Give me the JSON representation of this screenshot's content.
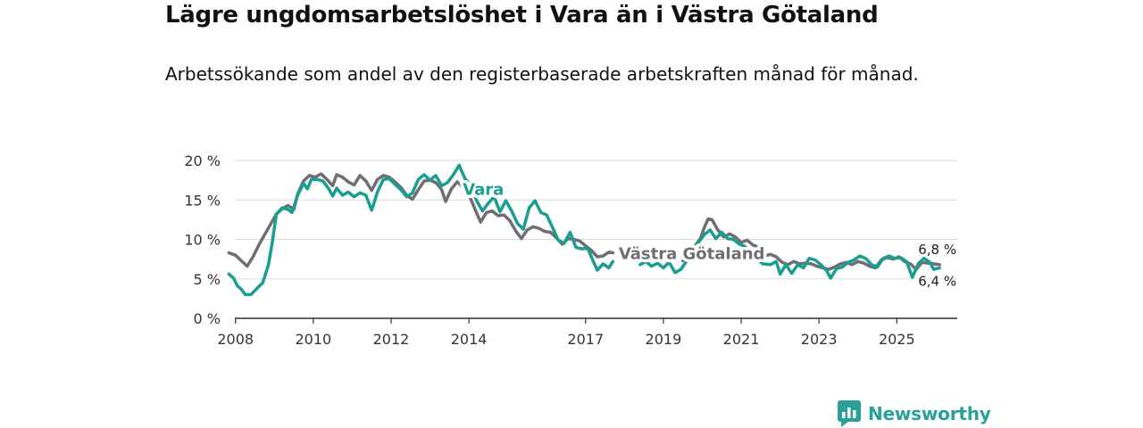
{
  "header": {
    "title": "Lägre ungdomsarbetslöshet i Vara än i Västra Götaland",
    "subtitle": "Arbetssökande som andel av den registerbaserade arbetskraften månad för månad."
  },
  "chart_data": {
    "type": "line",
    "title": "Lägre ungdomsarbetslöshet i Vara än i Västra Götaland",
    "xlabel": "",
    "ylabel": "",
    "ylim": [
      0,
      20
    ],
    "xlim": [
      2007.8,
      2026.6
    ],
    "grid": true,
    "y_ticks": [
      0,
      5,
      10,
      15,
      20
    ],
    "y_tick_labels": [
      "0 %",
      "5 %",
      "10 %",
      "15 %",
      "20 %"
    ],
    "x_ticks": [
      2008,
      2010,
      2012,
      2014,
      2017,
      2019,
      2021,
      2023,
      2025
    ],
    "x_tick_labels": [
      "2008",
      "2010",
      "2012",
      "2014",
      "2017",
      "2019",
      "2021",
      "2023",
      "2025"
    ],
    "series": [
      {
        "name": "Västra Götaland",
        "color": "#6e6e73",
        "end_label": "6,8 %",
        "points": [
          [
            2007.83,
            8.3
          ],
          [
            2008.0,
            8.0
          ],
          [
            2008.15,
            7.3
          ],
          [
            2008.3,
            6.6
          ],
          [
            2008.45,
            7.8
          ],
          [
            2008.6,
            9.3
          ],
          [
            2008.75,
            10.6
          ],
          [
            2008.9,
            11.9
          ],
          [
            2009.05,
            13.2
          ],
          [
            2009.2,
            13.9
          ],
          [
            2009.35,
            14.3
          ],
          [
            2009.5,
            13.8
          ],
          [
            2009.6,
            15.8
          ],
          [
            2009.75,
            17.4
          ],
          [
            2009.9,
            18.1
          ],
          [
            2010.05,
            17.9
          ],
          [
            2010.2,
            18.3
          ],
          [
            2010.35,
            17.6
          ],
          [
            2010.5,
            16.8
          ],
          [
            2010.6,
            18.2
          ],
          [
            2010.75,
            17.9
          ],
          [
            2010.9,
            17.3
          ],
          [
            2011.05,
            16.9
          ],
          [
            2011.2,
            18.1
          ],
          [
            2011.35,
            17.4
          ],
          [
            2011.5,
            16.2
          ],
          [
            2011.65,
            17.6
          ],
          [
            2011.8,
            18.1
          ],
          [
            2011.95,
            17.9
          ],
          [
            2012.1,
            17.3
          ],
          [
            2012.25,
            16.6
          ],
          [
            2012.4,
            15.6
          ],
          [
            2012.55,
            15.1
          ],
          [
            2012.7,
            16.3
          ],
          [
            2012.85,
            17.4
          ],
          [
            2013.0,
            17.5
          ],
          [
            2013.15,
            17.2
          ],
          [
            2013.3,
            16.3
          ],
          [
            2013.4,
            14.8
          ],
          [
            2013.55,
            16.4
          ],
          [
            2013.7,
            17.3
          ],
          [
            2013.85,
            16.6
          ],
          [
            2014.0,
            15.7
          ],
          [
            2014.15,
            13.9
          ],
          [
            2014.3,
            12.2
          ],
          [
            2014.45,
            13.4
          ],
          [
            2014.6,
            13.6
          ],
          [
            2014.75,
            13.0
          ],
          [
            2014.9,
            13.1
          ],
          [
            2015.05,
            12.4
          ],
          [
            2015.2,
            11.1
          ],
          [
            2015.35,
            10.1
          ],
          [
            2015.5,
            11.2
          ],
          [
            2015.65,
            11.6
          ],
          [
            2015.8,
            11.4
          ],
          [
            2015.95,
            11.0
          ],
          [
            2016.1,
            10.9
          ],
          [
            2016.25,
            10.2
          ],
          [
            2016.4,
            9.4
          ],
          [
            2016.55,
            10.1
          ],
          [
            2016.7,
            10.0
          ],
          [
            2016.85,
            9.8
          ],
          [
            2017.0,
            9.2
          ],
          [
            2017.15,
            8.6
          ],
          [
            2017.3,
            7.8
          ],
          [
            2017.45,
            7.9
          ],
          [
            2017.6,
            8.4
          ],
          [
            2017.7,
            8.3
          ],
          [
            2019.5,
            7.3
          ],
          [
            2019.65,
            8.0
          ],
          [
            2019.8,
            9.1
          ],
          [
            2019.95,
            10.1
          ],
          [
            2020.05,
            11.5
          ],
          [
            2020.15,
            12.6
          ],
          [
            2020.25,
            12.5
          ],
          [
            2020.4,
            11.2
          ],
          [
            2020.55,
            10.3
          ],
          [
            2020.7,
            10.7
          ],
          [
            2020.85,
            10.3
          ],
          [
            2021.0,
            9.6
          ],
          [
            2021.15,
            9.9
          ],
          [
            2021.3,
            9.3
          ],
          [
            2021.45,
            9.0
          ],
          [
            2021.6,
            7.9
          ],
          [
            2021.75,
            8.1
          ],
          [
            2021.9,
            7.8
          ],
          [
            2022.05,
            7.1
          ],
          [
            2022.2,
            6.8
          ],
          [
            2022.35,
            7.2
          ],
          [
            2022.5,
            6.9
          ],
          [
            2022.65,
            7.0
          ],
          [
            2022.8,
            6.9
          ],
          [
            2022.95,
            6.6
          ],
          [
            2023.1,
            6.4
          ],
          [
            2023.25,
            6.2
          ],
          [
            2023.4,
            6.5
          ],
          [
            2023.55,
            6.9
          ],
          [
            2023.7,
            7.1
          ],
          [
            2023.85,
            6.8
          ],
          [
            2024.0,
            7.2
          ],
          [
            2024.15,
            7.0
          ],
          [
            2024.3,
            6.6
          ],
          [
            2024.45,
            6.4
          ],
          [
            2024.6,
            7.4
          ],
          [
            2024.75,
            7.7
          ],
          [
            2024.9,
            7.5
          ],
          [
            2025.05,
            7.8
          ],
          [
            2025.2,
            7.2
          ],
          [
            2025.35,
            6.9
          ],
          [
            2025.5,
            6.2
          ],
          [
            2025.65,
            7.1
          ],
          [
            2025.8,
            7.0
          ],
          [
            2025.95,
            6.9
          ],
          [
            2026.1,
            6.8
          ]
        ]
      },
      {
        "name": "Vara",
        "color": "#1a9e91",
        "end_label": "6,4 %",
        "points": [
          [
            2007.83,
            5.6
          ],
          [
            2007.95,
            5.1
          ],
          [
            2008.05,
            4.1
          ],
          [
            2008.15,
            3.7
          ],
          [
            2008.25,
            3.0
          ],
          [
            2008.4,
            3.0
          ],
          [
            2008.55,
            3.8
          ],
          [
            2008.7,
            4.5
          ],
          [
            2008.85,
            6.8
          ],
          [
            2008.95,
            9.8
          ],
          [
            2009.05,
            13.2
          ],
          [
            2009.2,
            14.0
          ],
          [
            2009.35,
            13.8
          ],
          [
            2009.45,
            13.4
          ],
          [
            2009.6,
            15.6
          ],
          [
            2009.75,
            17.1
          ],
          [
            2009.85,
            16.4
          ],
          [
            2009.95,
            17.6
          ],
          [
            2010.1,
            17.6
          ],
          [
            2010.25,
            17.4
          ],
          [
            2010.4,
            16.4
          ],
          [
            2010.5,
            15.5
          ],
          [
            2010.6,
            16.5
          ],
          [
            2010.75,
            15.6
          ],
          [
            2010.9,
            16.0
          ],
          [
            2011.05,
            15.4
          ],
          [
            2011.2,
            15.9
          ],
          [
            2011.35,
            15.6
          ],
          [
            2011.5,
            13.7
          ],
          [
            2011.65,
            16.0
          ],
          [
            2011.8,
            17.6
          ],
          [
            2011.95,
            17.7
          ],
          [
            2012.1,
            17.0
          ],
          [
            2012.25,
            16.3
          ],
          [
            2012.4,
            15.4
          ],
          [
            2012.55,
            15.9
          ],
          [
            2012.7,
            17.6
          ],
          [
            2012.85,
            18.2
          ],
          [
            2013.0,
            17.5
          ],
          [
            2013.15,
            18.1
          ],
          [
            2013.3,
            16.8
          ],
          [
            2013.45,
            17.2
          ],
          [
            2013.6,
            18.2
          ],
          [
            2013.75,
            19.4
          ],
          [
            2013.9,
            17.7
          ],
          [
            2014.05,
            16.9
          ],
          [
            2014.2,
            14.9
          ],
          [
            2014.35,
            13.6
          ],
          [
            2014.5,
            14.6
          ],
          [
            2014.65,
            15.4
          ],
          [
            2014.8,
            13.5
          ],
          [
            2014.95,
            14.9
          ],
          [
            2015.1,
            13.6
          ],
          [
            2015.25,
            12.0
          ],
          [
            2015.4,
            11.3
          ],
          [
            2015.55,
            14.0
          ],
          [
            2015.7,
            14.9
          ],
          [
            2015.85,
            13.4
          ],
          [
            2016.0,
            13.1
          ],
          [
            2016.15,
            11.5
          ],
          [
            2016.3,
            9.9
          ],
          [
            2016.45,
            9.5
          ],
          [
            2016.6,
            10.9
          ],
          [
            2016.75,
            9.0
          ],
          [
            2016.9,
            8.8
          ],
          [
            2017.05,
            8.9
          ],
          [
            2017.2,
            7.2
          ],
          [
            2017.3,
            6.1
          ],
          [
            2017.45,
            6.9
          ],
          [
            2017.6,
            6.4
          ],
          [
            2017.7,
            7.2
          ],
          [
            2018.4,
            6.8
          ],
          [
            2018.55,
            7.2
          ],
          [
            2018.7,
            6.6
          ],
          [
            2018.85,
            7.0
          ],
          [
            2019.0,
            6.4
          ],
          [
            2019.15,
            7.1
          ],
          [
            2019.3,
            5.8
          ],
          [
            2019.45,
            6.2
          ],
          [
            2019.6,
            7.3
          ],
          [
            2019.75,
            8.1
          ],
          [
            2019.9,
            9.6
          ],
          [
            2020.05,
            10.6
          ],
          [
            2020.2,
            11.2
          ],
          [
            2020.35,
            10.1
          ],
          [
            2020.5,
            10.9
          ],
          [
            2020.65,
            10.1
          ],
          [
            2020.8,
            10.0
          ],
          [
            2020.95,
            9.4
          ],
          [
            2021.1,
            9.1
          ],
          [
            2021.25,
            8.1
          ],
          [
            2021.4,
            7.6
          ],
          [
            2021.55,
            6.9
          ],
          [
            2021.75,
            6.8
          ],
          [
            2021.9,
            7.2
          ],
          [
            2022.0,
            5.6
          ],
          [
            2022.15,
            6.8
          ],
          [
            2022.3,
            5.7
          ],
          [
            2022.45,
            6.8
          ],
          [
            2022.6,
            6.4
          ],
          [
            2022.75,
            7.6
          ],
          [
            2022.9,
            7.4
          ],
          [
            2023.05,
            6.8
          ],
          [
            2023.2,
            6.0
          ],
          [
            2023.3,
            5.1
          ],
          [
            2023.45,
            6.3
          ],
          [
            2023.6,
            6.5
          ],
          [
            2023.75,
            7.1
          ],
          [
            2023.9,
            7.4
          ],
          [
            2024.05,
            7.9
          ],
          [
            2024.2,
            7.6
          ],
          [
            2024.35,
            6.8
          ],
          [
            2024.5,
            6.5
          ],
          [
            2024.65,
            7.6
          ],
          [
            2024.8,
            7.9
          ],
          [
            2024.95,
            7.6
          ],
          [
            2025.1,
            7.7
          ],
          [
            2025.25,
            7.2
          ],
          [
            2025.4,
            5.2
          ],
          [
            2025.55,
            6.9
          ],
          [
            2025.7,
            7.6
          ],
          [
            2025.85,
            7.1
          ],
          [
            2025.95,
            6.2
          ],
          [
            2026.1,
            6.4
          ]
        ]
      }
    ],
    "annotations": [
      {
        "text": "Vara",
        "series": "Vara"
      },
      {
        "text": "Västra Götaland",
        "series": "Västra Götaland"
      }
    ]
  },
  "brand": {
    "name": "Newsworthy",
    "accent": "#2aa198"
  }
}
